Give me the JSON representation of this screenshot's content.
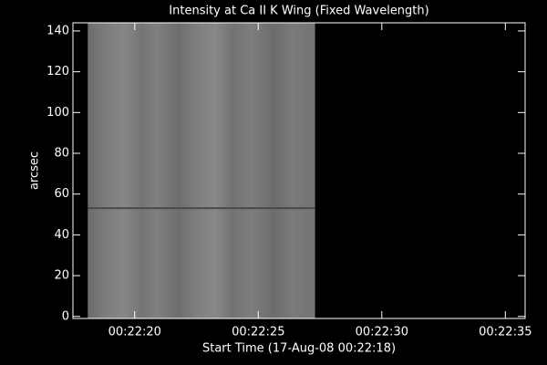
{
  "chart_data": {
    "type": "image",
    "title": "Intensity at Ca II K Wing (Fixed Wavelength)",
    "x_label": "Start Time (17-Aug-08 00:22:18)",
    "y_label": "arcsec",
    "xlim": [
      -0.5,
      17.8
    ],
    "ylim": [
      -1,
      144
    ],
    "xticks": [
      {
        "value": 2,
        "label": "00:22:20"
      },
      {
        "value": 7,
        "label": "00:22:25"
      },
      {
        "value": 12,
        "label": "00:22:30"
      },
      {
        "value": 17,
        "label": "00:22:35"
      }
    ],
    "yticks": [
      0,
      20,
      40,
      60,
      80,
      100,
      120,
      140
    ],
    "image_x": [
      0.1,
      9.3
    ],
    "image_y": [
      -1,
      144
    ]
  }
}
